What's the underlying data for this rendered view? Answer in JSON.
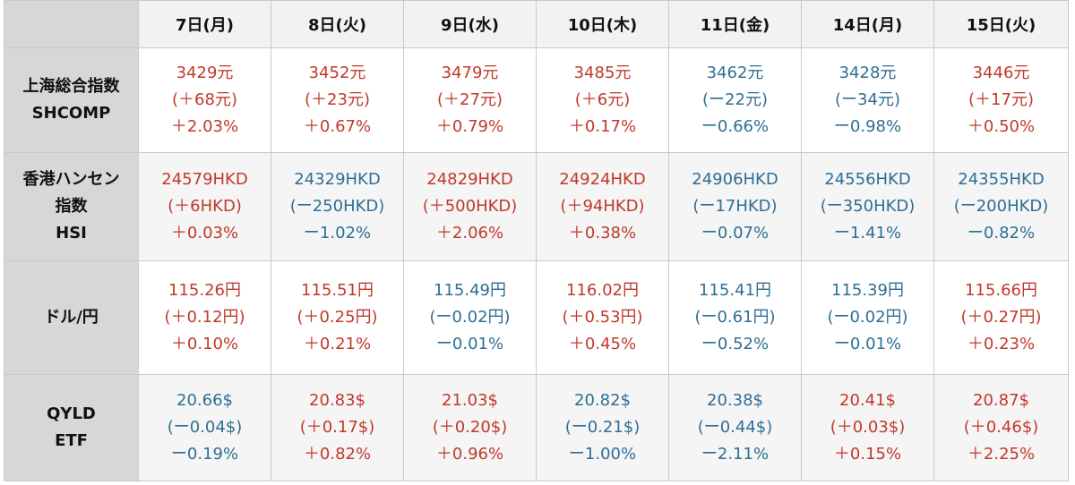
{
  "columns": [
    "7日(月)",
    "8日(火)",
    "9日(水)",
    "10日(木)",
    "11日(金)",
    "14日(月)",
    "15日(火)"
  ],
  "colors": {
    "up": "#c0392b",
    "down": "#2e6e95",
    "header_bg": "#d7d7d7",
    "row_bg_alt": "#f5f5f5"
  },
  "rows": [
    {
      "label": [
        "上海総合指数",
        "SHCOMP"
      ],
      "cells": [
        {
          "dir": "up",
          "lines": [
            "3429元",
            "(＋68元)",
            "＋2.03%"
          ]
        },
        {
          "dir": "up",
          "lines": [
            "3452元",
            "(＋23元)",
            "＋0.67%"
          ]
        },
        {
          "dir": "up",
          "lines": [
            "3479元",
            "(＋27元)",
            "＋0.79%"
          ]
        },
        {
          "dir": "up",
          "lines": [
            "3485元",
            "(＋6元)",
            "＋0.17%"
          ]
        },
        {
          "dir": "down",
          "lines": [
            "3462元",
            "(ー22元)",
            "ー0.66%"
          ]
        },
        {
          "dir": "down",
          "lines": [
            "3428元",
            "(ー34元)",
            "ー0.98%"
          ]
        },
        {
          "dir": "up",
          "lines": [
            "3446元",
            "(＋17元)",
            "＋0.50%"
          ]
        }
      ]
    },
    {
      "label": [
        "香港ハンセン",
        "指数",
        "HSI"
      ],
      "cells": [
        {
          "dir": "up",
          "lines": [
            "24579HKD",
            "(＋6HKD)",
            "＋0.03%"
          ]
        },
        {
          "dir": "down",
          "lines": [
            "24329HKD",
            "(ー250HKD)",
            "ー1.02%"
          ]
        },
        {
          "dir": "up",
          "lines": [
            "24829HKD",
            "(＋500HKD)",
            "＋2.06%"
          ]
        },
        {
          "dir": "up",
          "lines": [
            "24924HKD",
            "(＋94HKD)",
            "＋0.38%"
          ]
        },
        {
          "dir": "down",
          "lines": [
            "24906HKD",
            "(ー17HKD)",
            "ー0.07%"
          ]
        },
        {
          "dir": "down",
          "lines": [
            "24556HKD",
            "(ー350HKD)",
            "ー1.41%"
          ]
        },
        {
          "dir": "down",
          "lines": [
            "24355HKD",
            "(ー200HKD)",
            "ー0.82%"
          ]
        }
      ]
    },
    {
      "label": [
        "ドル/円"
      ],
      "cells": [
        {
          "dir": "up",
          "lines": [
            "115.26円",
            "(＋0.12円)",
            "＋0.10%"
          ]
        },
        {
          "dir": "up",
          "lines": [
            "115.51円",
            "(＋0.25円)",
            "＋0.21%"
          ]
        },
        {
          "dir": "down",
          "lines": [
            "115.49円",
            "(ー0.02円)",
            "ー0.01%"
          ]
        },
        {
          "dir": "up",
          "lines": [
            "116.02円",
            "(＋0.53円)",
            "＋0.45%"
          ]
        },
        {
          "dir": "down",
          "lines": [
            "115.41円",
            "(ー0.61円)",
            "ー0.52%"
          ]
        },
        {
          "dir": "down",
          "lines": [
            "115.39円",
            "(ー0.02円)",
            "ー0.01%"
          ]
        },
        {
          "dir": "up",
          "lines": [
            "115.66円",
            "(＋0.27円)",
            "＋0.23%"
          ]
        }
      ]
    },
    {
      "label": [
        "QYLD",
        "ETF"
      ],
      "cells": [
        {
          "dir": "down",
          "lines": [
            "20.66$",
            "(ー0.04$)",
            "ー0.19%"
          ]
        },
        {
          "dir": "up",
          "lines": [
            "20.83$",
            "(＋0.17$)",
            "＋0.82%"
          ]
        },
        {
          "dir": "up",
          "lines": [
            "21.03$",
            "(＋0.20$)",
            "＋0.96%"
          ]
        },
        {
          "dir": "down",
          "lines": [
            "20.82$",
            "(ー0.21$)",
            "ー1.00%"
          ]
        },
        {
          "dir": "down",
          "lines": [
            "20.38$",
            "(ー0.44$)",
            "ー2.11%"
          ]
        },
        {
          "dir": "up",
          "lines": [
            "20.41$",
            "(＋0.03$)",
            "＋0.15%"
          ]
        },
        {
          "dir": "up",
          "lines": [
            "20.87$",
            "(＋0.46$)",
            "＋2.25%"
          ]
        }
      ]
    }
  ]
}
